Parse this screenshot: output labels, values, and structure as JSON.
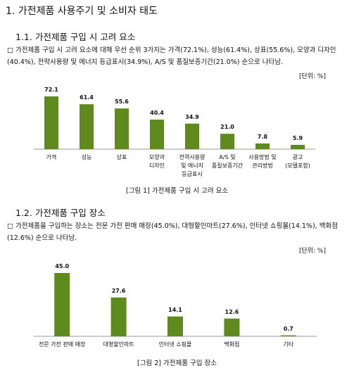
{
  "title": "1. 가전제품 사용주기 및 소비자 태도",
  "sections": [
    {
      "heading": "1.1. 가전제품 구입 시 고려 요소",
      "paragraph": "□ 가전제품 구입 시 고려 요소에 대해 우선 순위 3가지는 가격(72.1%), 성능(61.4%), 상표(55.6%), 모양과 디자인(40.4%), 전략사용량 및 에너지 등급표시(34.9%), A/S 및 품질보증기간(21.0%) 순으로 나타남.",
      "chart": {
        "type": "bar",
        "unit": "[단위: %]",
        "categories": [
          "가격",
          "성능",
          "상표",
          "모양과\n디자인",
          "전력사용량\n및 에너지\n등급표시",
          "A/S 및\n품질보증기간",
          "사용방법 및\n관리방법",
          "광고\n(모델포함)"
        ],
        "values": [
          72.1,
          61.4,
          55.6,
          40.4,
          34.9,
          21.0,
          7.8,
          5.9
        ],
        "value_labels": [
          "72.1",
          "61.4",
          "55.6",
          "40.4",
          "34.9",
          "21.0",
          "7.8",
          "5.9"
        ],
        "color": "#5f8a1e",
        "caption": "[그림 1] 가전제품 구입 시 고려 요소"
      }
    },
    {
      "heading": "1.2. 가전제품 구입 장소",
      "paragraph": "□ 가전제품을 구입하는 장소는 전문 가전 판매 매장(45.0%), 대형할인마트(27.6%), 인터넷 쇼핑몰(14.1%), 백화점(12.6%) 순으로 나타남.",
      "chart": {
        "type": "bar",
        "unit": "[단위: %]",
        "categories": [
          "전문 가전 판매 매장",
          "대형할인마트",
          "인터넷 쇼핑몰",
          "백화점",
          "기타"
        ],
        "values": [
          45.0,
          27.6,
          14.1,
          12.6,
          0.7
        ],
        "value_labels": [
          "45.0",
          "27.6",
          "14.1",
          "12.6",
          "0.7"
        ],
        "color": "#5f8a1e",
        "caption": "[그림 2] 가전제품 구입 장소"
      }
    }
  ]
}
